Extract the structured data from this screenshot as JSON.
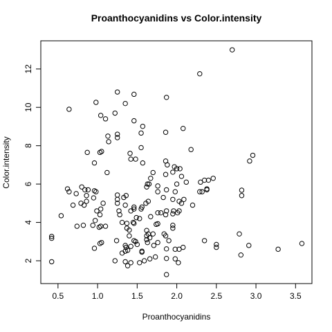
{
  "chart_data": {
    "type": "scatter",
    "title": "Proanthocyanidins vs Color.intensity",
    "x_label": "Proanthocyanidins",
    "y_label": "Color.intensity",
    "xlim": [
      0.283,
      3.707
    ],
    "ylim": [
      0.81,
      13.47
    ],
    "xticks": [
      0.5,
      {
        "value": 1,
        "label": "1.0"
      },
      1.5,
      {
        "value": 2,
        "label": "2.0"
      },
      2.5,
      {
        "value": 3,
        "label": "3.0"
      },
      3.5
    ],
    "yticks": [
      2,
      4,
      6,
      8,
      10,
      12
    ],
    "color": "#000000",
    "x": [
      2.7,
      2.29,
      1.25,
      1.46,
      0.98,
      1.87,
      1.35,
      0.64,
      1.04,
      1.22,
      1.1,
      1.46,
      1.57,
      1.55,
      2.08,
      1.86,
      1.25,
      1.25,
      1.13,
      0.87,
      1.14,
      1.55,
      2.18,
      1.03,
      1.05,
      1.41,
      1.42,
      1.48,
      2.96,
      2.92,
      0.96,
      1.57,
      1.86,
      1.88,
      1.97,
      2.0,
      1.95,
      2.04,
      1.12,
      1.7,
      1.67,
      1.86,
      2.06,
      2.12,
      2.3,
      2.35,
      2.4,
      2.46,
      1.76,
      1.62,
      1.63,
      1.65,
      2.0,
      0.62,
      0.64,
      0.8,
      0.84,
      0.88,
      0.96,
      0.73,
      0.86,
      0.95,
      0.98,
      1.25,
      1.25,
      1.36,
      1.33,
      1.76,
      1.83,
      1.87,
      1.98,
      1.95,
      2.03,
      2.06,
      2.09,
      2.2,
      2.29,
      2.32,
      2.38,
      2.38,
      2.82,
      2.82,
      0.54,
      0.69,
      0.79,
      0.83,
      0.86,
      0.97,
      0.99,
      1.03,
      1.04,
      1.07,
      1.1,
      1.25,
      1.27,
      1.35,
      1.42,
      1.46,
      1.46,
      1.55,
      1.56,
      1.61,
      1.64,
      1.67,
      1.76,
      1.8,
      1.86,
      1.87,
      1.95,
      1.96,
      2.01,
      2.03,
      0.74,
      0.82,
      0.94,
      1.02,
      1.04,
      1.28,
      1.31,
      1.37,
      1.37,
      1.4,
      1.45,
      1.46,
      1.49,
      1.53,
      1.62,
      1.64,
      1.7,
      1.74,
      1.76,
      1.84,
      1.86,
      1.95,
      1.95,
      2.79,
      0.42,
      0.42,
      0.96,
      1.03,
      1.05,
      1.24,
      1.35,
      1.36,
      1.35,
      1.38,
      1.4,
      1.42,
      1.46,
      1.48,
      1.5,
      1.56,
      1.56,
      1.62,
      1.62,
      1.63,
      1.66,
      1.71,
      1.76,
      1.87,
      1.9,
      1.98,
      2.03,
      2.08,
      2.35,
      2.5,
      2.5,
      2.91,
      3.28,
      3.58,
      0.42,
      1.22,
      1.31,
      1.35,
      1.38,
      1.42,
      1.53,
      1.59,
      1.66,
      1.73,
      1.87,
      1.98,
      2.02,
      2.81,
      1.87
    ],
    "values": [
      13.0,
      11.75,
      10.8,
      10.68,
      10.26,
      10.52,
      10.2,
      9.9,
      9.58,
      9.7,
      9.4,
      9.3,
      9.01,
      8.66,
      8.9,
      8.7,
      8.6,
      8.42,
      8.5,
      7.65,
      8.21,
      7.9,
      7.8,
      7.65,
      7.7,
      7.6,
      7.3,
      7.3,
      7.5,
      7.2,
      7.1,
      7.1,
      7.2,
      7.0,
      6.9,
      6.8,
      6.62,
      6.8,
      6.6,
      6.6,
      6.3,
      6.5,
      6.4,
      6.1,
      6.1,
      6.2,
      6.2,
      6.3,
      5.9,
      5.85,
      6.0,
      6.0,
      6.0,
      5.75,
      5.6,
      5.85,
      5.7,
      5.7,
      5.65,
      5.5,
      5.4,
      5.28,
      5.6,
      5.43,
      5.2,
      5.4,
      5.3,
      5.6,
      5.3,
      5.7,
      5.6,
      5.2,
      5.1,
      5.0,
      5.2,
      4.9,
      5.6,
      5.6,
      5.75,
      5.7,
      5.68,
      5.4,
      4.35,
      4.9,
      5.0,
      4.9,
      5.1,
      4.1,
      4.6,
      4.4,
      4.7,
      5.0,
      3.8,
      5.0,
      4.6,
      4.9,
      4.6,
      4.8,
      4.7,
      4.7,
      4.8,
      5.0,
      5.1,
      4.3,
      4.5,
      4.5,
      4.4,
      4.6,
      4.45,
      4.6,
      4.5,
      4.6,
      3.8,
      3.85,
      3.85,
      3.75,
      3.8,
      4.4,
      4.0,
      3.95,
      3.7,
      3.6,
      4.0,
      3.95,
      4.25,
      4.2,
      3.58,
      3.4,
      3.4,
      3.9,
      3.93,
      3.4,
      3.3,
      3.85,
      3.7,
      3.4,
      3.27,
      3.17,
      2.65,
      2.9,
      2.95,
      3.05,
      2.8,
      2.7,
      2.5,
      2.55,
      3.3,
      2.75,
      3.05,
      3.0,
      2.85,
      2.45,
      2.5,
      3.1,
      3.3,
      2.95,
      3.2,
      2.8,
      2.95,
      2.62,
      3.05,
      2.6,
      2.6,
      2.7,
      3.05,
      2.85,
      2.7,
      2.8,
      2.6,
      2.9,
      1.95,
      2.0,
      2.4,
      1.95,
      1.74,
      1.9,
      1.9,
      2.0,
      2.1,
      2.2,
      2.12,
      2.1,
      1.9,
      2.3,
      1.28
    ]
  }
}
